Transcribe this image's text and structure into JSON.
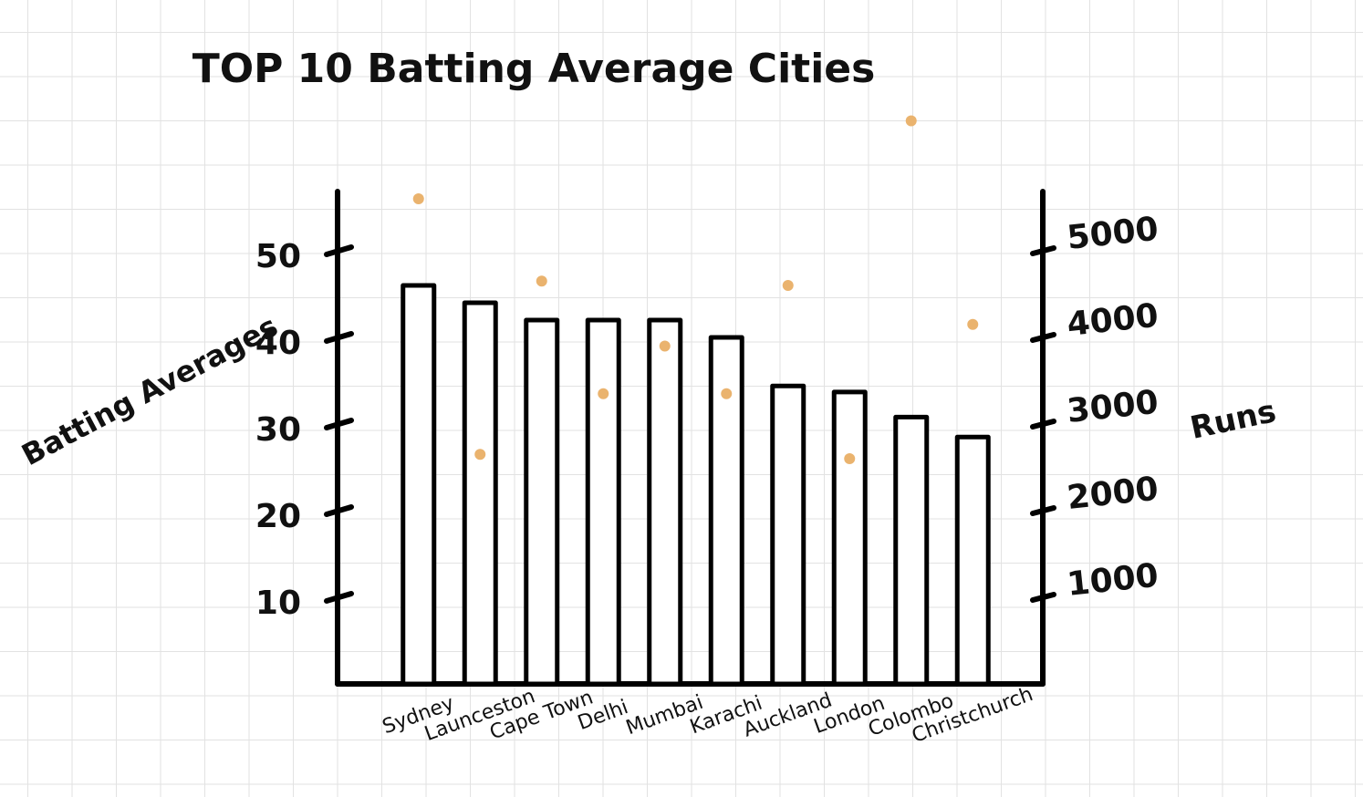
{
  "chart_data": {
    "type": "bar",
    "title": "TOP 10 Batting Average Cities",
    "y_label": "Batting Averages",
    "y2_label": "Runs",
    "categories": [
      "Sydney",
      "Launceston",
      "Cape Town",
      "Delhi",
      "Mumbai",
      "Karachi",
      "Auckland",
      "London",
      "Colombo",
      "Christchurch"
    ],
    "series": [
      {
        "type": "bar",
        "color": "#ffffff",
        "values": [
          46,
          44,
          42,
          42,
          42,
          40,
          34.4,
          33.7,
          30.8,
          28.5
        ]
      },
      {
        "type": "scatter",
        "axis": "y2",
        "color": "#eab36e",
        "values": [
          5600,
          2650,
          4650,
          3350,
          3900,
          3350,
          4600,
          2600,
          6500,
          4150
        ]
      }
    ],
    "ylim": [
      0,
      66
    ],
    "yticks": [
      10,
      20,
      30,
      40,
      50
    ],
    "y2lim": [
      0,
      6600
    ],
    "y2ticks": [
      1000,
      2000,
      3000,
      4000,
      5000
    ],
    "grid": false
  }
}
